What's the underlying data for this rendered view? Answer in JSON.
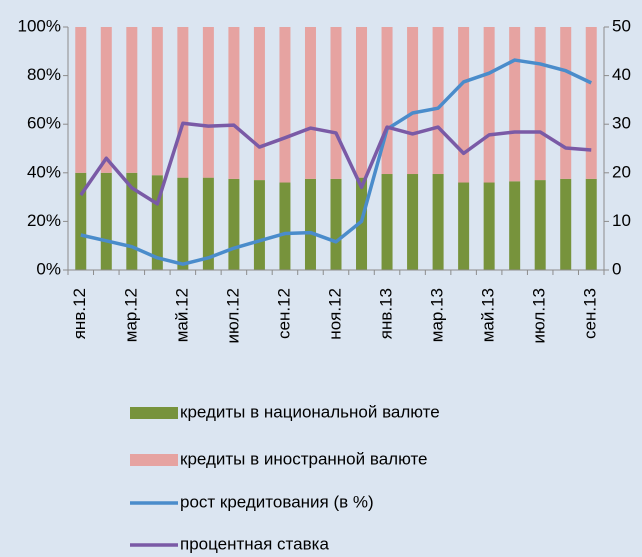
{
  "chart_data": {
    "type": "bar",
    "categories": [
      "янв.12",
      null,
      "мар.12",
      null,
      "май.12",
      null,
      "июл.12",
      null,
      "сен.12",
      null,
      "ноя.12",
      null,
      "янв.13",
      null,
      "мар.13",
      null,
      "май.13",
      null,
      "июл.13",
      null,
      "сен.13"
    ],
    "stacked": true,
    "ylim": [
      0,
      100
    ],
    "yticks": [
      {
        "value": 0,
        "label": "0%"
      },
      {
        "value": 20,
        "label": "20%"
      },
      {
        "value": 40,
        "label": "40%"
      },
      {
        "value": 60,
        "label": "60%"
      },
      {
        "value": 80,
        "label": "80%"
      },
      {
        "value": 100,
        "label": "100%"
      }
    ],
    "y2lim": [
      0,
      50
    ],
    "y2ticks": [
      0,
      10,
      20,
      30,
      40,
      50
    ],
    "series": [
      {
        "name": "кредиты в национальной валюте",
        "color": "#77933c",
        "type": "bar",
        "values": [
          40,
          40,
          40,
          39,
          38,
          38,
          37.5,
          37,
          36,
          37.5,
          37.5,
          38,
          39.5,
          39.5,
          39.5,
          36,
          36,
          36.5,
          37,
          37.5,
          37.5
        ]
      },
      {
        "name": "кредиты в иностранной валюте",
        "color": "#e6a3a1",
        "type": "bar",
        "values": [
          60,
          60,
          60,
          61,
          62,
          62,
          62.5,
          63,
          64,
          62.5,
          62.5,
          62,
          60.5,
          60.5,
          60.5,
          64,
          64,
          63.5,
          63,
          62.5,
          62.5
        ]
      },
      {
        "name": "рост кредитования (в %)",
        "color": "#4a8ccb",
        "type": "line",
        "axis": "y2",
        "values": [
          7.2,
          6,
          4.8,
          2.5,
          1.2,
          2.5,
          4.5,
          6,
          7.5,
          7.7,
          5.8,
          10,
          29,
          32.3,
          33.3,
          38.7,
          40.5,
          43.2,
          42.4,
          41,
          38.5
        ]
      },
      {
        "name": "процентная ставка",
        "color": "#7a5aa6",
        "type": "line",
        "axis": "y2",
        "values": [
          15.4,
          23,
          16.9,
          13.6,
          30.2,
          29.6,
          29.8,
          25.3,
          27.2,
          29.2,
          28.2,
          17,
          29.4,
          28,
          29.4,
          24,
          27.8,
          28.4,
          28.4,
          25.1,
          24.7
        ]
      }
    ]
  }
}
